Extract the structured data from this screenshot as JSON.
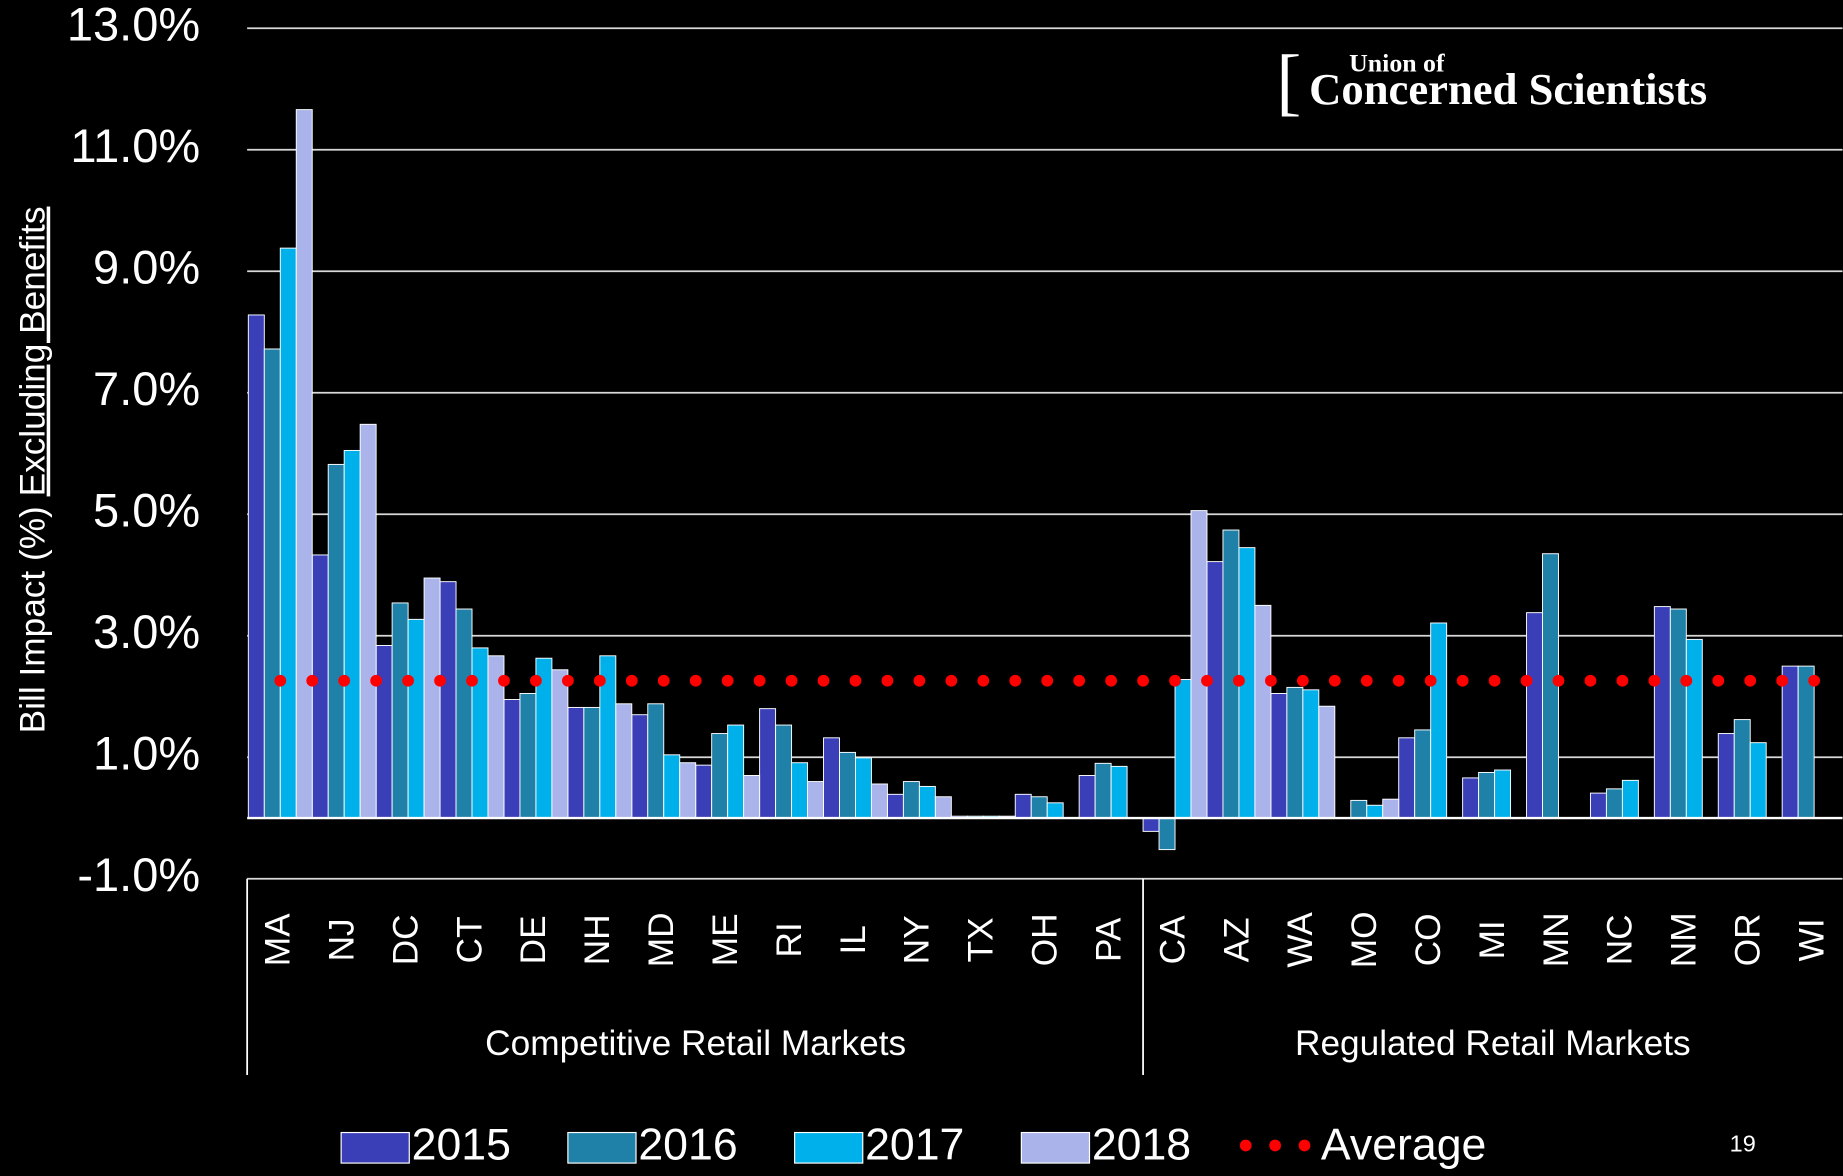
{
  "chart_data": {
    "type": "bar",
    "y_label": {
      "text": "Bill Impact (%) ",
      "emphasis": "Excluding Benefits"
    },
    "categories": [
      "MA",
      "NJ",
      "DC",
      "CT",
      "DE",
      "NH",
      "MD",
      "ME",
      "RI",
      "IL",
      "NY",
      "TX",
      "OH",
      "PA",
      "CA",
      "AZ",
      "WA",
      "MO",
      "CO",
      "MI",
      "MN",
      "NC",
      "NM",
      "OR",
      "WI"
    ],
    "groups": [
      {
        "label": "Competitive Retail Markets",
        "first": "MA",
        "last": "PA"
      },
      {
        "label": "Regulated Retail Markets",
        "first": "CA",
        "last": "WI"
      }
    ],
    "series": [
      {
        "name": "2015",
        "color": "#3a3fb8",
        "values": [
          8.28,
          4.33,
          2.84,
          3.89,
          1.95,
          1.82,
          1.7,
          0.87,
          1.8,
          1.32,
          0.39,
          0.03,
          0.39,
          0.7,
          -0.22,
          4.22,
          2.05,
          null,
          1.32,
          0.66,
          3.38,
          0.41,
          3.48,
          1.39,
          2.5
        ]
      },
      {
        "name": "2016",
        "color": "#1f80a8",
        "values": [
          7.72,
          5.82,
          3.54,
          3.44,
          2.05,
          1.82,
          1.88,
          1.39,
          1.53,
          1.08,
          0.6,
          0.03,
          0.35,
          0.9,
          -0.52,
          4.74,
          2.15,
          0.29,
          1.45,
          0.75,
          4.35,
          0.48,
          3.44,
          1.62,
          2.5
        ]
      },
      {
        "name": "2017",
        "color": "#00b0ea",
        "values": [
          9.38,
          6.05,
          3.27,
          2.8,
          2.63,
          2.67,
          1.04,
          1.53,
          0.91,
          0.99,
          0.52,
          0.03,
          0.25,
          0.85,
          2.28,
          4.45,
          2.11,
          0.21,
          3.21,
          0.79,
          null,
          0.62,
          2.94,
          1.24,
          null
        ]
      },
      {
        "name": "2018",
        "color": "#aab3ea",
        "values": [
          11.66,
          6.48,
          3.95,
          2.67,
          2.44,
          1.88,
          0.91,
          0.7,
          0.6,
          0.56,
          0.35,
          0.03,
          null,
          null,
          5.06,
          3.5,
          1.84,
          0.31,
          null,
          null,
          null,
          null,
          null,
          null,
          null
        ]
      }
    ],
    "average": {
      "name": "Average",
      "color": "#ff0000",
      "value": 2.26
    },
    "ylim": [
      -1,
      13
    ],
    "yticks": [
      {
        "value": -1,
        "label": "-1.0%"
      },
      {
        "value": 1,
        "label": "1.0%"
      },
      {
        "value": 3,
        "label": "3.0%"
      },
      {
        "value": 5,
        "label": "5.0%"
      },
      {
        "value": 7,
        "label": "7.0%"
      },
      {
        "value": 9,
        "label": "9.0%"
      },
      {
        "value": 11,
        "label": "11.0%"
      },
      {
        "value": 13,
        "label": "13.0%"
      }
    ],
    "grid": true,
    "legend": "bottom",
    "logo": {
      "line1": "Union of",
      "line2": "Concerned Scientists"
    },
    "page_number": 19
  }
}
